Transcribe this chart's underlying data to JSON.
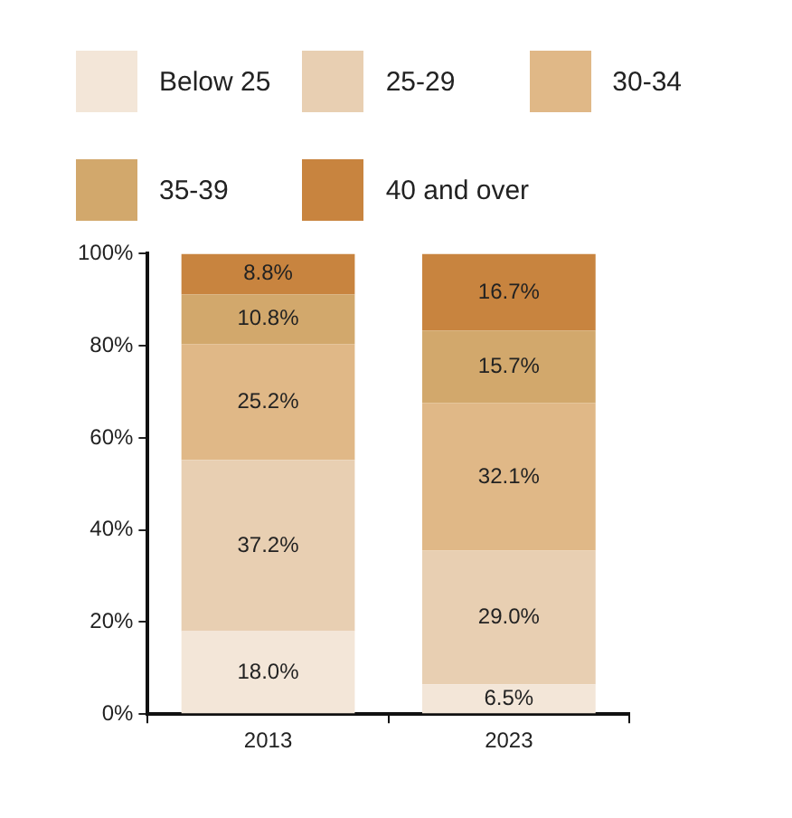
{
  "chart_data": {
    "type": "bar",
    "stacked": true,
    "legend": "top",
    "categories": [
      "2013",
      "2023"
    ],
    "series": [
      {
        "name": "Below 25",
        "color": "#f3e6d8",
        "values": [
          18.0,
          6.5
        ],
        "value_labels": [
          "18.0%",
          "6.5%"
        ]
      },
      {
        "name": "25-29",
        "color": "#e8cfb2",
        "values": [
          37.2,
          29.0
        ],
        "value_labels": [
          "37.2%",
          "29.0%"
        ]
      },
      {
        "name": "30-34",
        "color": "#e0b887",
        "values": [
          25.2,
          32.1
        ],
        "value_labels": [
          "25.2%",
          "32.1%"
        ]
      },
      {
        "name": "35-39",
        "color": "#d2a86c",
        "values": [
          10.8,
          15.7
        ],
        "value_labels": [
          "10.8%",
          "15.7%"
        ]
      },
      {
        "name": "40 and over",
        "color": "#c8843f",
        "values": [
          8.8,
          16.7
        ],
        "value_labels": [
          "8.8%",
          "16.7%"
        ]
      }
    ],
    "ylim": [
      0,
      100
    ],
    "yticks": [
      {
        "value": 0,
        "label": "0%"
      },
      {
        "value": 20,
        "label": "20%"
      },
      {
        "value": 40,
        "label": "40%"
      },
      {
        "value": 60,
        "label": "60%"
      },
      {
        "value": 80,
        "label": "80%"
      },
      {
        "value": 100,
        "label": "100%"
      }
    ],
    "grid": false
  }
}
